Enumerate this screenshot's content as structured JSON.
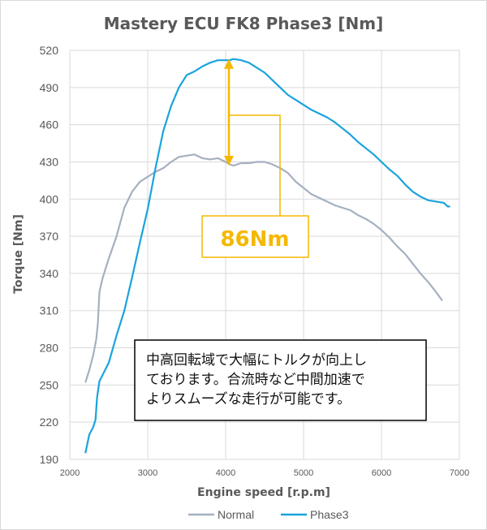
{
  "chart_data": {
    "type": "line",
    "title": "Mastery ECU FK8 Phase3 [Nm]",
    "xlabel": "Engine speed [r.p.m]",
    "ylabel": "Torque [Nm]",
    "xlim": [
      2000,
      7000
    ],
    "ylim": [
      190,
      520
    ],
    "xticks": [
      2000,
      3000,
      4000,
      5000,
      6000,
      7000
    ],
    "yticks": [
      190,
      220,
      250,
      280,
      310,
      340,
      370,
      400,
      430,
      460,
      490,
      520
    ],
    "grid": true,
    "legend": "bottom",
    "series": [
      {
        "name": "Normal",
        "color": "#a5b0c0",
        "points": [
          [
            2200,
            252
          ],
          [
            2250,
            262
          ],
          [
            2300,
            274
          ],
          [
            2340,
            287
          ],
          [
            2360,
            300
          ],
          [
            2380,
            325
          ],
          [
            2420,
            336
          ],
          [
            2500,
            352
          ],
          [
            2600,
            370
          ],
          [
            2700,
            393
          ],
          [
            2800,
            406
          ],
          [
            2900,
            414
          ],
          [
            3000,
            418
          ],
          [
            3100,
            422
          ],
          [
            3200,
            425
          ],
          [
            3300,
            430
          ],
          [
            3400,
            434
          ],
          [
            3500,
            435
          ],
          [
            3600,
            436
          ],
          [
            3700,
            433
          ],
          [
            3800,
            432
          ],
          [
            3900,
            433
          ],
          [
            4000,
            430
          ],
          [
            4050,
            428
          ],
          [
            4100,
            427
          ],
          [
            4200,
            429
          ],
          [
            4300,
            429
          ],
          [
            4400,
            430
          ],
          [
            4500,
            430
          ],
          [
            4600,
            428
          ],
          [
            4700,
            425
          ],
          [
            4800,
            421
          ],
          [
            4900,
            414
          ],
          [
            5000,
            409
          ],
          [
            5100,
            404
          ],
          [
            5200,
            401
          ],
          [
            5300,
            398
          ],
          [
            5400,
            395
          ],
          [
            5500,
            393
          ],
          [
            5600,
            391
          ],
          [
            5700,
            387
          ],
          [
            5800,
            384
          ],
          [
            5900,
            380
          ],
          [
            6000,
            375
          ],
          [
            6100,
            369
          ],
          [
            6200,
            362
          ],
          [
            6300,
            356
          ],
          [
            6400,
            348
          ],
          [
            6500,
            340
          ],
          [
            6600,
            333
          ],
          [
            6700,
            325
          ],
          [
            6780,
            318
          ]
        ]
      },
      {
        "name": "Phase3",
        "color": "#1aa3dd",
        "points": [
          [
            2200,
            195
          ],
          [
            2250,
            210
          ],
          [
            2300,
            216
          ],
          [
            2330,
            222
          ],
          [
            2350,
            240
          ],
          [
            2380,
            253
          ],
          [
            2500,
            268
          ],
          [
            2600,
            290
          ],
          [
            2700,
            310
          ],
          [
            2800,
            337
          ],
          [
            2900,
            365
          ],
          [
            3000,
            392
          ],
          [
            3100,
            425
          ],
          [
            3200,
            455
          ],
          [
            3300,
            475
          ],
          [
            3400,
            490
          ],
          [
            3500,
            500
          ],
          [
            3600,
            503
          ],
          [
            3700,
            507
          ],
          [
            3800,
            510
          ],
          [
            3900,
            512
          ],
          [
            4000,
            512
          ],
          [
            4050,
            512
          ],
          [
            4100,
            513
          ],
          [
            4200,
            512
          ],
          [
            4300,
            510
          ],
          [
            4400,
            506
          ],
          [
            4500,
            502
          ],
          [
            4600,
            496
          ],
          [
            4700,
            490
          ],
          [
            4800,
            484
          ],
          [
            4900,
            480
          ],
          [
            5000,
            476
          ],
          [
            5100,
            472
          ],
          [
            5200,
            469
          ],
          [
            5300,
            466
          ],
          [
            5400,
            462
          ],
          [
            5500,
            457
          ],
          [
            5600,
            452
          ],
          [
            5700,
            446
          ],
          [
            5800,
            441
          ],
          [
            5900,
            436
          ],
          [
            6000,
            430
          ],
          [
            6100,
            424
          ],
          [
            6200,
            419
          ],
          [
            6300,
            412
          ],
          [
            6400,
            406
          ],
          [
            6500,
            402
          ],
          [
            6600,
            399
          ],
          [
            6700,
            398
          ],
          [
            6800,
            397
          ],
          [
            6850,
            394
          ],
          [
            6880,
            394
          ]
        ]
      }
    ],
    "annotations": {
      "difference_label": "86Nm",
      "difference_value": 86,
      "arrow_rpm": 4000,
      "arrow_from": 427,
      "arrow_to": 513
    },
    "note_lines": [
      "中高回転域で大幅にトルクが向上し",
      "ております。合流時など中間加速で",
      "よりスムーズな走行が可能です。"
    ]
  },
  "colors": {
    "normal": "#a5b0c0",
    "phase3": "#1aa3dd",
    "callout": "#f5b800",
    "grid": "#d9d9d9"
  }
}
